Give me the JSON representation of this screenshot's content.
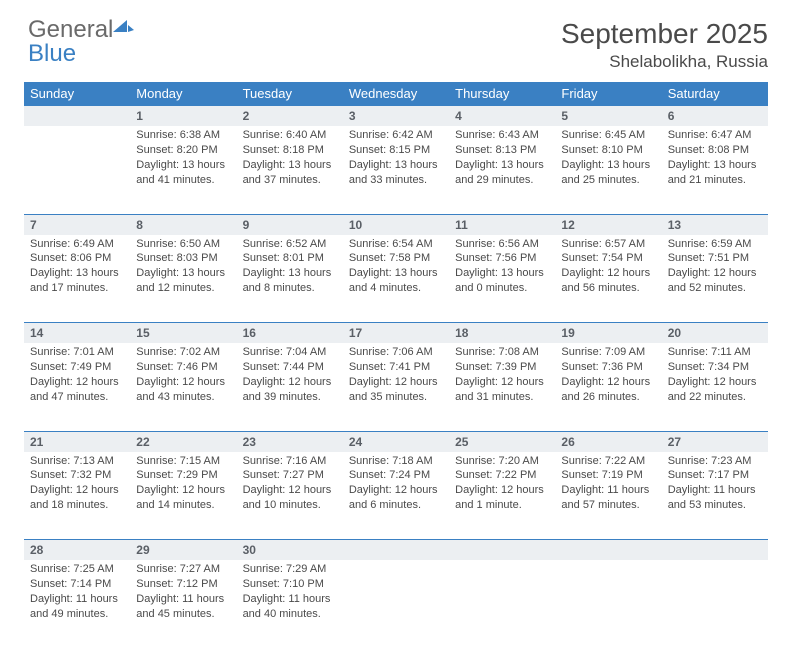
{
  "brand": {
    "part1": "General",
    "part2": "Blue"
  },
  "title": {
    "month": "September 2025",
    "location": "Shelabolikha, Russia"
  },
  "style": {
    "header_bg": "#3a80c3",
    "header_text": "#ffffff",
    "daynum_bg": "#eceff2",
    "border_color": "#3a80c3",
    "body_text": "#4a4a4a",
    "page_bg": "#ffffff",
    "font_family": "Arial, Helvetica, sans-serif",
    "month_fontsize": 28,
    "day_header_fontsize": 13,
    "cell_fontsize": 11
  },
  "columns": [
    "Sunday",
    "Monday",
    "Tuesday",
    "Wednesday",
    "Thursday",
    "Friday",
    "Saturday"
  ],
  "weeks": [
    [
      null,
      {
        "n": "1",
        "sr": "6:38 AM",
        "ss": "8:20 PM",
        "dl": "13 hours and 41 minutes."
      },
      {
        "n": "2",
        "sr": "6:40 AM",
        "ss": "8:18 PM",
        "dl": "13 hours and 37 minutes."
      },
      {
        "n": "3",
        "sr": "6:42 AM",
        "ss": "8:15 PM",
        "dl": "13 hours and 33 minutes."
      },
      {
        "n": "4",
        "sr": "6:43 AM",
        "ss": "8:13 PM",
        "dl": "13 hours and 29 minutes."
      },
      {
        "n": "5",
        "sr": "6:45 AM",
        "ss": "8:10 PM",
        "dl": "13 hours and 25 minutes."
      },
      {
        "n": "6",
        "sr": "6:47 AM",
        "ss": "8:08 PM",
        "dl": "13 hours and 21 minutes."
      }
    ],
    [
      {
        "n": "7",
        "sr": "6:49 AM",
        "ss": "8:06 PM",
        "dl": "13 hours and 17 minutes."
      },
      {
        "n": "8",
        "sr": "6:50 AM",
        "ss": "8:03 PM",
        "dl": "13 hours and 12 minutes."
      },
      {
        "n": "9",
        "sr": "6:52 AM",
        "ss": "8:01 PM",
        "dl": "13 hours and 8 minutes."
      },
      {
        "n": "10",
        "sr": "6:54 AM",
        "ss": "7:58 PM",
        "dl": "13 hours and 4 minutes."
      },
      {
        "n": "11",
        "sr": "6:56 AM",
        "ss": "7:56 PM",
        "dl": "13 hours and 0 minutes."
      },
      {
        "n": "12",
        "sr": "6:57 AM",
        "ss": "7:54 PM",
        "dl": "12 hours and 56 minutes."
      },
      {
        "n": "13",
        "sr": "6:59 AM",
        "ss": "7:51 PM",
        "dl": "12 hours and 52 minutes."
      }
    ],
    [
      {
        "n": "14",
        "sr": "7:01 AM",
        "ss": "7:49 PM",
        "dl": "12 hours and 47 minutes."
      },
      {
        "n": "15",
        "sr": "7:02 AM",
        "ss": "7:46 PM",
        "dl": "12 hours and 43 minutes."
      },
      {
        "n": "16",
        "sr": "7:04 AM",
        "ss": "7:44 PM",
        "dl": "12 hours and 39 minutes."
      },
      {
        "n": "17",
        "sr": "7:06 AM",
        "ss": "7:41 PM",
        "dl": "12 hours and 35 minutes."
      },
      {
        "n": "18",
        "sr": "7:08 AM",
        "ss": "7:39 PM",
        "dl": "12 hours and 31 minutes."
      },
      {
        "n": "19",
        "sr": "7:09 AM",
        "ss": "7:36 PM",
        "dl": "12 hours and 26 minutes."
      },
      {
        "n": "20",
        "sr": "7:11 AM",
        "ss": "7:34 PM",
        "dl": "12 hours and 22 minutes."
      }
    ],
    [
      {
        "n": "21",
        "sr": "7:13 AM",
        "ss": "7:32 PM",
        "dl": "12 hours and 18 minutes."
      },
      {
        "n": "22",
        "sr": "7:15 AM",
        "ss": "7:29 PM",
        "dl": "12 hours and 14 minutes."
      },
      {
        "n": "23",
        "sr": "7:16 AM",
        "ss": "7:27 PM",
        "dl": "12 hours and 10 minutes."
      },
      {
        "n": "24",
        "sr": "7:18 AM",
        "ss": "7:24 PM",
        "dl": "12 hours and 6 minutes."
      },
      {
        "n": "25",
        "sr": "7:20 AM",
        "ss": "7:22 PM",
        "dl": "12 hours and 1 minute."
      },
      {
        "n": "26",
        "sr": "7:22 AM",
        "ss": "7:19 PM",
        "dl": "11 hours and 57 minutes."
      },
      {
        "n": "27",
        "sr": "7:23 AM",
        "ss": "7:17 PM",
        "dl": "11 hours and 53 minutes."
      }
    ],
    [
      {
        "n": "28",
        "sr": "7:25 AM",
        "ss": "7:14 PM",
        "dl": "11 hours and 49 minutes."
      },
      {
        "n": "29",
        "sr": "7:27 AM",
        "ss": "7:12 PM",
        "dl": "11 hours and 45 minutes."
      },
      {
        "n": "30",
        "sr": "7:29 AM",
        "ss": "7:10 PM",
        "dl": "11 hours and 40 minutes."
      },
      null,
      null,
      null,
      null
    ]
  ],
  "labels": {
    "sunrise": "Sunrise:",
    "sunset": "Sunset:",
    "daylight": "Daylight:"
  }
}
